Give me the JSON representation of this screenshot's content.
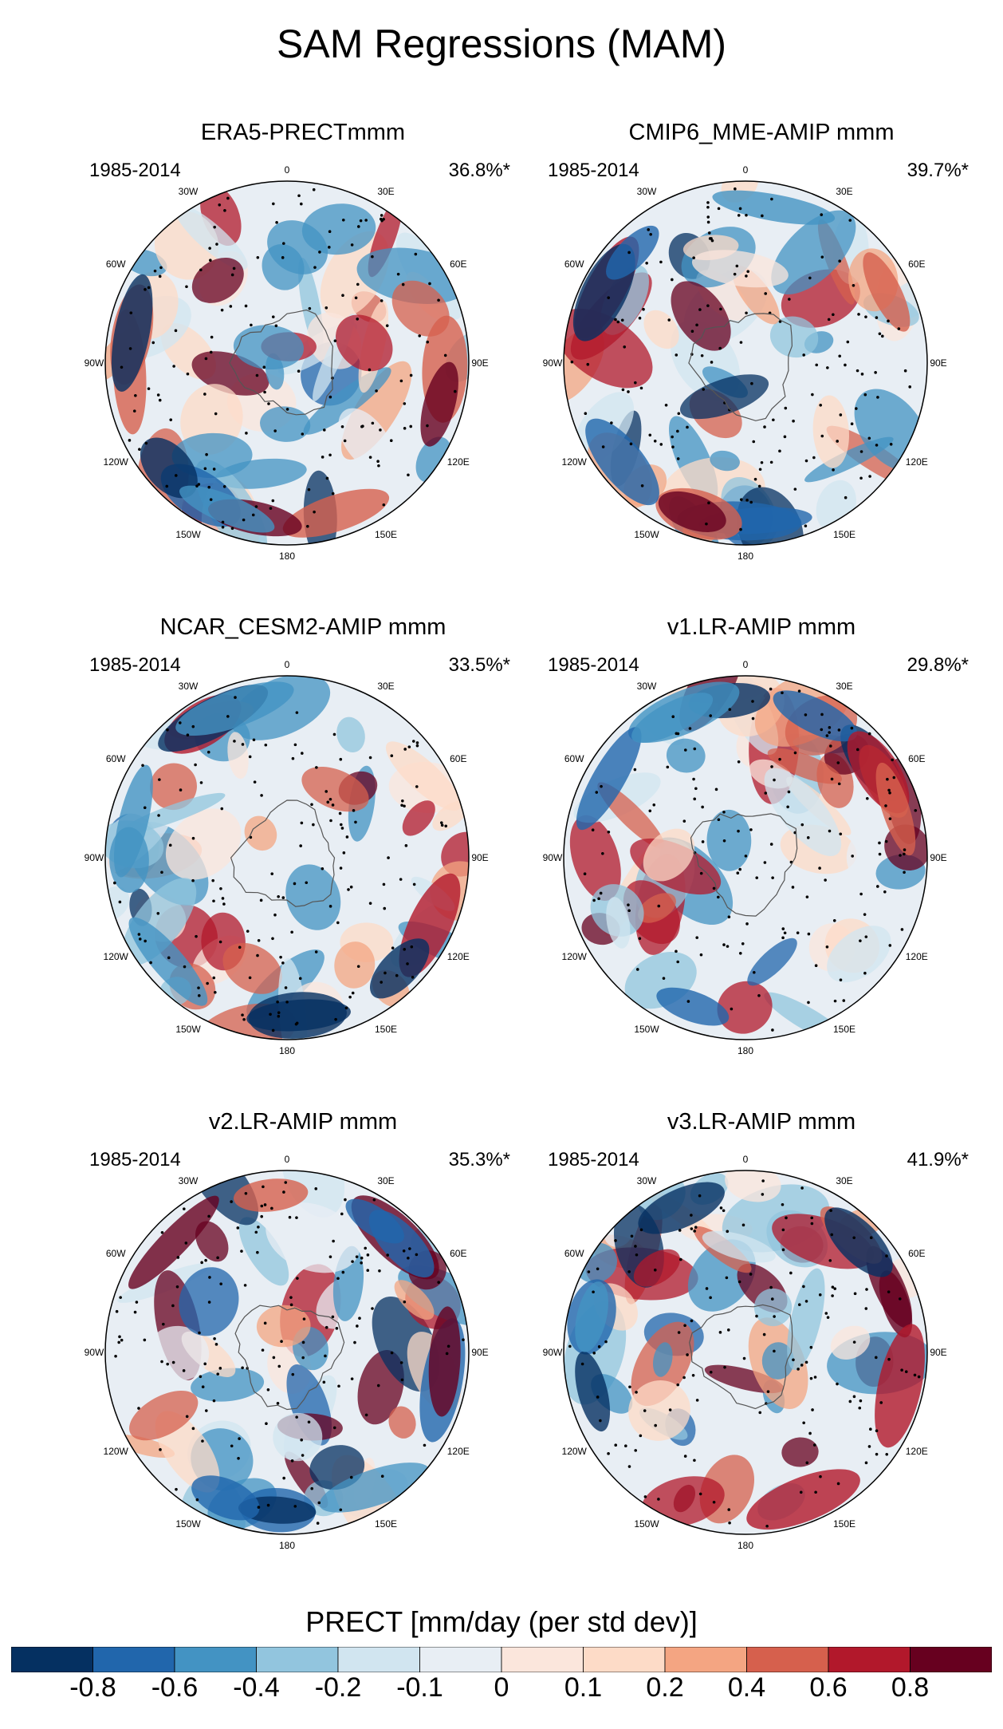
{
  "figure": {
    "title": "SAM Regressions (MAM)"
  },
  "panels": [
    {
      "title": "ERA5-PRECTmmm",
      "period": "1985-2014",
      "percent": "36.8%*",
      "seed": 11
    },
    {
      "title": "CMIP6_MME-AMIP  mmm",
      "period": "1985-2014",
      "percent": "39.7%*",
      "seed": 23
    },
    {
      "title": "NCAR_CESM2-AMIP  mmm",
      "period": "1985-2014",
      "percent": "33.5%*",
      "seed": 37
    },
    {
      "title": "v1.LR-AMIP  mmm",
      "period": "1985-2014",
      "percent": "29.8%*",
      "seed": 41
    },
    {
      "title": "v2.LR-AMIP  mmm",
      "period": "1985-2014",
      "percent": "35.3%*",
      "seed": 53
    },
    {
      "title": "v3.LR-AMIP  mmm",
      "period": "1985-2014",
      "percent": "41.9%*",
      "seed": 67
    }
  ],
  "longitude_labels": [
    "0",
    "30E",
    "60E",
    "90E",
    "120E",
    "150E",
    "180",
    "150W",
    "120W",
    "90W",
    "60W",
    "30W"
  ],
  "colorbar": {
    "title": "PRECT [mm/day (per std dev)]",
    "ticks": [
      "-0.8",
      "-0.6",
      "-0.4",
      "-0.2",
      "-0.1",
      "0",
      "0.1",
      "0.2",
      "0.4",
      "0.6",
      "0.8"
    ],
    "colors": [
      "#053061",
      "#2166ac",
      "#4393c3",
      "#92c5de",
      "#d1e5f0",
      "#e8eef4",
      "#fbe6dc",
      "#fddbc7",
      "#f4a582",
      "#d6604d",
      "#b2182b",
      "#67001f"
    ]
  }
}
